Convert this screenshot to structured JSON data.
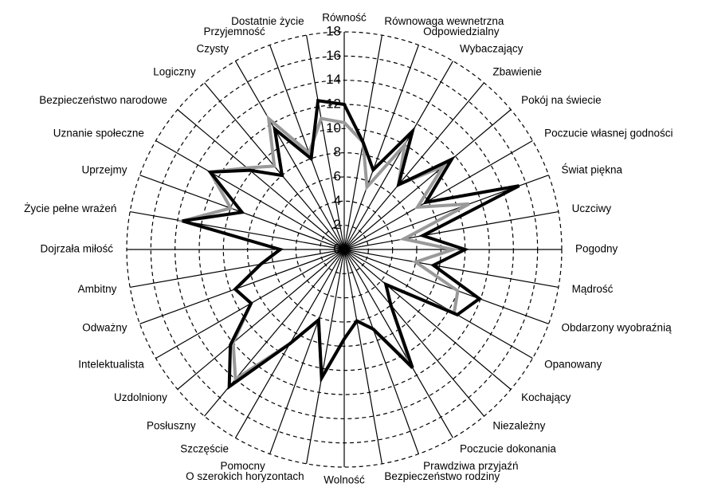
{
  "chart_data": {
    "type": "radar",
    "categories": [
      "Równość",
      "Równowaga wewnetrzna",
      "Odpowiedzialny",
      "Wybaczający",
      "Zbawienie",
      "Pokój na świecie",
      "Poczucie własnej godności",
      "Świat piękna",
      "Uczciwy",
      "Pogodny",
      "Mądrość",
      "Obdarzony wyobraźnią",
      "Opanowany",
      "Kochający",
      "Niezależny",
      "Poczucie dokonania",
      "Prawdziwa przyjaźń",
      "Bezpieczeństwo rodziny",
      "Wolność",
      "O szerokich horyzontach",
      "Pomocny",
      "Szczęście",
      "Posłuszny",
      "Uzdolniony",
      "Intelektualista",
      "Odważny",
      "Ambitny",
      "Dojrzała miłość",
      "Życie pełne wrażeń",
      "Uprzejmy",
      "Uznanie społeczne",
      "Bezpieczeństwo narodowe",
      "Logiczny",
      "Czysty",
      "Przyjemność",
      "Dostatnie życie"
    ],
    "series": [
      {
        "color": "#999999",
        "values": [
          10.5,
          9,
          5.5,
          10,
          7,
          10.7,
          7,
          11,
          5,
          9,
          6,
          10,
          10.5,
          4.5,
          6,
          11,
          7,
          6,
          7.4,
          10.8,
          6.2,
          9,
          14,
          12,
          8.9,
          9.6,
          7,
          5.3,
          13.6,
          10,
          12.8,
          10.5,
          9,
          12.5,
          8.5,
          11
        ]
      },
      {
        "color": "#000000",
        "values": [
          12,
          9,
          7,
          11.3,
          7,
          11.6,
          7.8,
          15.4,
          6.6,
          10,
          7.5,
          11.9,
          10.8,
          4.5,
          6,
          11.3,
          7,
          6,
          7.4,
          10.8,
          6.2,
          9,
          14.8,
          12.3,
          8.9,
          9.6,
          7,
          5.3,
          13.6,
          9,
          12.8,
          10.2,
          8,
          11.5,
          8,
          12.5
        ]
      }
    ],
    "ylim": [
      0,
      18
    ],
    "yticks": [
      0,
      2,
      4,
      6,
      8,
      10,
      12,
      14,
      16,
      18
    ],
    "grid": true
  }
}
